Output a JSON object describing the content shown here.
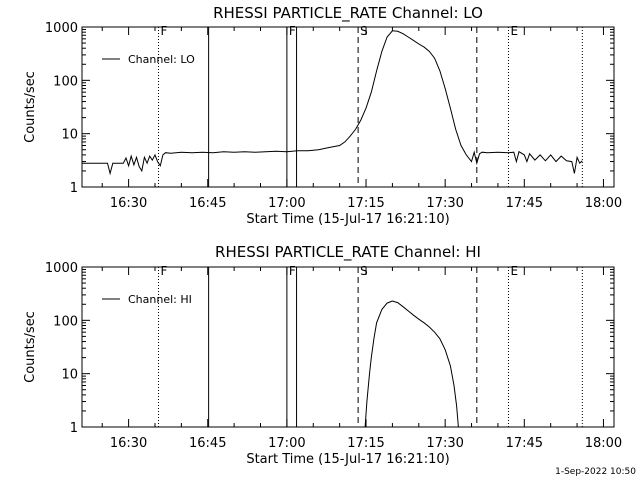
{
  "timestamp": "1-Sep-2022 10:50",
  "chart_data": [
    {
      "type": "line",
      "title": "RHESSI PARTICLE_RATE Channel: LO",
      "xlabel": "Start Time (15-Jul-17 16:21:10)",
      "ylabel": "Counts/sec",
      "y_scale": "log",
      "xlim": [
        "16:21:10",
        "18:02:00"
      ],
      "ylim": [
        1,
        1000
      ],
      "x_ticks": [
        "16:30",
        "16:45",
        "17:00",
        "17:15",
        "17:30",
        "17:45",
        "18:00"
      ],
      "y_ticks": [
        "1",
        "10",
        "100",
        "1000"
      ],
      "legend": {
        "position": "top-left",
        "entries": [
          "Channel: LO"
        ]
      },
      "series": [
        {
          "name": "Channel: LO",
          "points": [
            [
              "16:21:10",
              2.8
            ],
            [
              "16:24:00",
              2.8
            ],
            [
              "16:26:00",
              2.8
            ],
            [
              "16:26:30",
              1.8
            ],
            [
              "16:27:00",
              2.8
            ],
            [
              "16:28:00",
              2.8
            ],
            [
              "16:29:00",
              2.8
            ],
            [
              "16:29:30",
              3.5
            ],
            [
              "16:30:00",
              2.5
            ],
            [
              "16:30:30",
              3.8
            ],
            [
              "16:31:00",
              2.6
            ],
            [
              "16:31:30",
              3.6
            ],
            [
              "16:32:00",
              2.4
            ],
            [
              "16:32:30",
              2.0
            ],
            [
              "16:33:00",
              3.6
            ],
            [
              "16:33:30",
              2.8
            ],
            [
              "16:34:00",
              3.8
            ],
            [
              "16:34:30",
              3.2
            ],
            [
              "16:35:00",
              4.0
            ],
            [
              "16:35:30",
              3.0
            ],
            [
              "16:36:00",
              2.5
            ],
            [
              "16:36:30",
              4.0
            ],
            [
              "16:37:00",
              4.4
            ],
            [
              "16:38:00",
              4.3
            ],
            [
              "16:40:00",
              4.5
            ],
            [
              "16:42:00",
              4.4
            ],
            [
              "16:44:00",
              4.5
            ],
            [
              "16:46:00",
              4.4
            ],
            [
              "16:48:00",
              4.6
            ],
            [
              "16:50:00",
              4.5
            ],
            [
              "16:52:00",
              4.6
            ],
            [
              "16:54:00",
              4.5
            ],
            [
              "16:56:00",
              4.6
            ],
            [
              "16:58:00",
              4.7
            ],
            [
              "17:00:00",
              4.6
            ],
            [
              "17:02:00",
              4.8
            ],
            [
              "17:04:00",
              4.8
            ],
            [
              "17:06:00",
              5.0
            ],
            [
              "17:08:00",
              5.5
            ],
            [
              "17:10:00",
              6.0
            ],
            [
              "17:11:00",
              7.0
            ],
            [
              "17:12:00",
              9.0
            ],
            [
              "17:13:00",
              12.0
            ],
            [
              "17:14:00",
              18.0
            ],
            [
              "17:15:00",
              30.0
            ],
            [
              "17:16:00",
              60.0
            ],
            [
              "17:17:00",
              150.0
            ],
            [
              "17:18:00",
              350.0
            ],
            [
              "17:19:00",
              650.0
            ],
            [
              "17:20:00",
              850.0
            ],
            [
              "17:21:00",
              830.0
            ],
            [
              "17:22:00",
              750.0
            ],
            [
              "17:23:00",
              650.0
            ],
            [
              "17:24:00",
              560.0
            ],
            [
              "17:25:00",
              480.0
            ],
            [
              "17:26:00",
              420.0
            ],
            [
              "17:27:00",
              350.0
            ],
            [
              "17:28:00",
              260.0
            ],
            [
              "17:29:00",
              150.0
            ],
            [
              "17:30:00",
              70.0
            ],
            [
              "17:31:00",
              30.0
            ],
            [
              "17:32:00",
              12.0
            ],
            [
              "17:33:00",
              6.0
            ],
            [
              "17:34:00",
              4.0
            ],
            [
              "17:35:00",
              3.0
            ],
            [
              "17:35:30",
              4.5
            ],
            [
              "17:36:00",
              2.8
            ],
            [
              "17:36:30",
              4.2
            ],
            [
              "17:37:00",
              4.5
            ],
            [
              "17:38:00",
              4.4
            ],
            [
              "17:40:00",
              4.5
            ],
            [
              "17:42:00",
              4.4
            ],
            [
              "17:43:00",
              4.5
            ],
            [
              "17:43:30",
              3.0
            ],
            [
              "17:44:00",
              4.6
            ],
            [
              "17:45:00",
              4.0
            ],
            [
              "17:45:30",
              3.0
            ],
            [
              "17:46:00",
              4.2
            ],
            [
              "17:47:00",
              3.2
            ],
            [
              "17:48:00",
              4.0
            ],
            [
              "17:49:00",
              3.1
            ],
            [
              "17:50:00",
              4.0
            ],
            [
              "17:51:00",
              3.0
            ],
            [
              "17:52:00",
              3.8
            ],
            [
              "17:53:00",
              3.1
            ],
            [
              "17:54:00",
              3.0
            ],
            [
              "17:54:30",
              1.8
            ],
            [
              "17:55:00",
              3.6
            ],
            [
              "17:55:30",
              2.8
            ],
            [
              "17:56:00",
              3.1
            ]
          ]
        }
      ],
      "markers": [
        {
          "time": "16:35:40",
          "style": "dotted",
          "label": "F"
        },
        {
          "time": "16:45:10",
          "style": "solid",
          "label": ""
        },
        {
          "time": "17:00:00",
          "style": "solid",
          "label": "F"
        },
        {
          "time": "17:01:50",
          "style": "solid",
          "label": ""
        },
        {
          "time": "17:13:30",
          "style": "dashed",
          "label": "S"
        },
        {
          "time": "17:36:00",
          "style": "dashed",
          "label": ""
        },
        {
          "time": "17:42:00",
          "style": "dotted",
          "label": "E"
        },
        {
          "time": "17:56:00",
          "style": "dotted",
          "label": ""
        }
      ]
    },
    {
      "type": "line",
      "title": "RHESSI PARTICLE_RATE Channel: HI",
      "xlabel": "Start Time (15-Jul-17 16:21:10)",
      "ylabel": "Counts/sec",
      "y_scale": "log",
      "xlim": [
        "16:21:10",
        "18:02:00"
      ],
      "ylim": [
        1,
        1000
      ],
      "x_ticks": [
        "16:30",
        "16:45",
        "17:00",
        "17:15",
        "17:30",
        "17:45",
        "18:00"
      ],
      "y_ticks": [
        "1",
        "10",
        "100",
        "1000"
      ],
      "legend": {
        "position": "top-left",
        "entries": [
          "Channel: HI"
        ]
      },
      "series": [
        {
          "name": "Channel: HI",
          "points": [
            [
              "17:14:50",
              1.0
            ],
            [
              "17:15:10",
              3.0
            ],
            [
              "17:15:40",
              10.0
            ],
            [
              "17:16:00",
              20.0
            ],
            [
              "17:16:30",
              45.0
            ],
            [
              "17:17:00",
              90.0
            ],
            [
              "17:18:00",
              160.0
            ],
            [
              "17:19:00",
              210.0
            ],
            [
              "17:20:00",
              230.0
            ],
            [
              "17:21:00",
              215.0
            ],
            [
              "17:22:00",
              180.0
            ],
            [
              "17:23:00",
              150.0
            ],
            [
              "17:24:00",
              125.0
            ],
            [
              "17:25:00",
              105.0
            ],
            [
              "17:26:00",
              90.0
            ],
            [
              "17:27:00",
              75.0
            ],
            [
              "17:28:00",
              60.0
            ],
            [
              "17:29:00",
              45.0
            ],
            [
              "17:30:00",
              28.0
            ],
            [
              "17:31:00",
              14.0
            ],
            [
              "17:31:40",
              6.0
            ],
            [
              "17:32:10",
              2.5
            ],
            [
              "17:32:30",
              1.0
            ]
          ]
        }
      ],
      "markers": [
        {
          "time": "16:35:40",
          "style": "dotted",
          "label": "F"
        },
        {
          "time": "16:45:10",
          "style": "solid",
          "label": ""
        },
        {
          "time": "17:00:00",
          "style": "solid",
          "label": "F"
        },
        {
          "time": "17:01:50",
          "style": "solid",
          "label": ""
        },
        {
          "time": "17:13:30",
          "style": "dashed",
          "label": "S"
        },
        {
          "time": "17:36:00",
          "style": "dashed",
          "label": ""
        },
        {
          "time": "17:42:00",
          "style": "dotted",
          "label": "E"
        },
        {
          "time": "17:56:00",
          "style": "dotted",
          "label": ""
        }
      ]
    }
  ]
}
